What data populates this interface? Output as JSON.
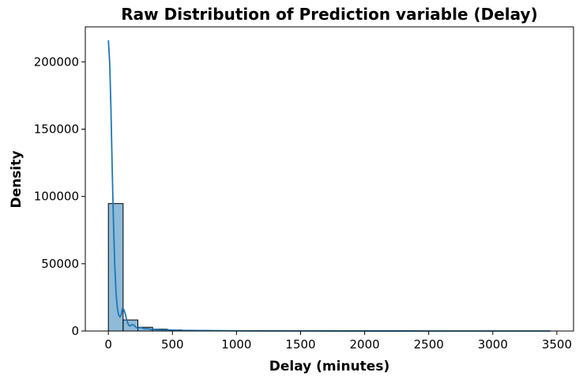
{
  "chart_data": {
    "type": "bar",
    "title": "Raw Distribution of Prediction variable (Delay)",
    "xlabel": "Delay (minutes)",
    "ylabel": "Density",
    "xlim": [
      -180,
      3630
    ],
    "ylim": [
      0,
      226000
    ],
    "x_ticks": [
      0,
      500,
      1000,
      1500,
      2000,
      2500,
      3000,
      3500
    ],
    "x_tick_labels": [
      "0",
      "500",
      "1000",
      "1500",
      "2000",
      "2500",
      "3000",
      "3500"
    ],
    "y_ticks": [
      0,
      50000,
      100000,
      150000,
      200000
    ],
    "y_tick_labels": [
      "0",
      "50000",
      "100000",
      "150000",
      "200000"
    ],
    "grid": false,
    "bars": {
      "bin_edges": [
        0,
        115,
        230,
        345,
        460,
        575,
        690,
        805,
        920,
        1035,
        1150,
        1265,
        1380,
        1495,
        1610,
        1725,
        1840,
        1955,
        2070,
        2185,
        2300,
        2415,
        2530,
        2645,
        2760,
        2875,
        2990,
        3105,
        3220,
        3335,
        3450
      ],
      "values": [
        94700,
        8200,
        2800,
        1400,
        800,
        500,
        350,
        250,
        180,
        140,
        110,
        90,
        70,
        60,
        50,
        40,
        35,
        30,
        25,
        20,
        18,
        15,
        12,
        10,
        8,
        6,
        5,
        4,
        3,
        2
      ],
      "fill_color": "#1f77b4",
      "fill_opacity": 0.5,
      "edge_color": "#000000"
    },
    "kde": {
      "x": [
        0,
        10,
        20,
        30,
        40,
        50,
        60,
        70,
        80,
        90,
        100,
        110,
        120,
        130,
        140,
        150,
        160,
        170,
        180,
        190,
        200,
        210,
        220,
        230,
        240,
        250,
        260,
        270,
        280,
        290,
        300,
        320,
        340,
        360,
        380,
        400,
        420,
        440,
        460,
        480,
        500,
        530,
        560,
        600,
        650,
        700,
        800,
        900,
        1000,
        1200,
        1500,
        2000,
        2500,
        3000,
        3450
      ],
      "y": [
        216000,
        200000,
        165000,
        120000,
        80000,
        48000,
        28000,
        17000,
        12000,
        10500,
        12000,
        16500,
        16000,
        13500,
        9500,
        6000,
        4300,
        3800,
        4400,
        4700,
        4200,
        3300,
        2500,
        2100,
        2300,
        2600,
        2400,
        2000,
        1700,
        1600,
        1800,
        1400,
        1100,
        1100,
        1000,
        900,
        800,
        850,
        900,
        800,
        700,
        600,
        500,
        450,
        400,
        350,
        250,
        200,
        150,
        100,
        60,
        30,
        20,
        10,
        5
      ],
      "color": "#1f77b4"
    }
  }
}
